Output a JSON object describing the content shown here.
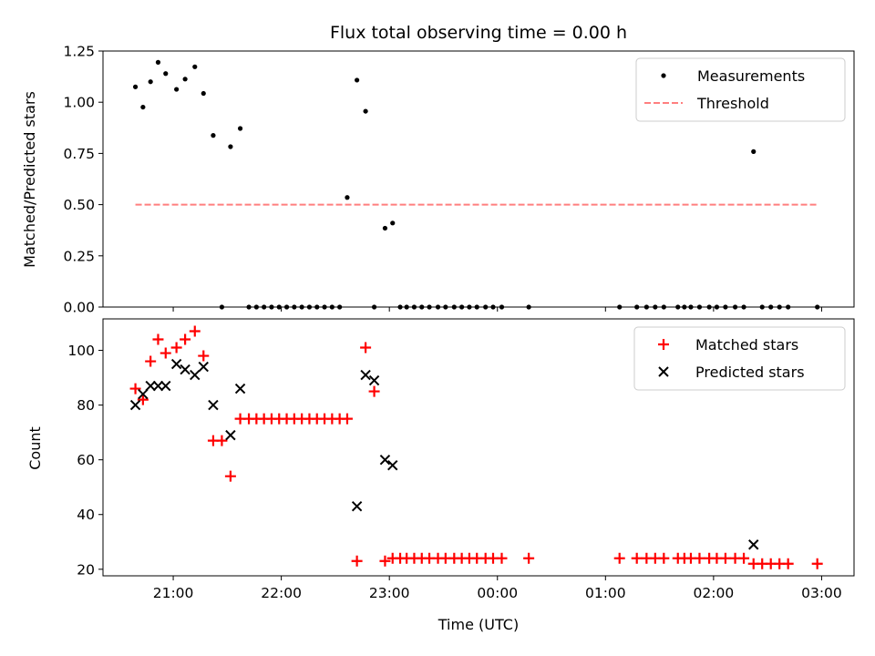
{
  "chart_data": [
    {
      "type": "scatter",
      "title": "Flux total observing time = 0.00 h",
      "ylabel": "Matched/Predicted stars",
      "xlabel": "",
      "ylim": [
        0,
        1.25
      ],
      "xlim": [
        20.35,
        27.3
      ],
      "yticks": [
        0.0,
        0.25,
        0.5,
        0.75,
        1.0,
        1.25
      ],
      "ytick_labels": [
        "0.00",
        "0.25",
        "0.50",
        "0.75",
        "1.00",
        "1.25"
      ],
      "series": [
        {
          "name": "Measurements",
          "color": "#000000",
          "marker": "dot",
          "x": [
            20.65,
            20.72,
            20.79,
            20.86,
            20.93,
            21.03,
            21.11,
            21.2,
            21.28,
            21.37,
            21.45,
            21.53,
            21.62,
            21.7,
            21.77,
            21.84,
            21.91,
            21.98,
            22.05,
            22.12,
            22.19,
            22.26,
            22.33,
            22.4,
            22.47,
            22.54,
            22.61,
            22.7,
            22.78,
            22.86,
            22.96,
            23.03,
            23.1,
            23.16,
            23.23,
            23.3,
            23.37,
            23.45,
            23.52,
            23.6,
            23.67,
            23.74,
            23.81,
            23.89,
            23.96,
            24.04,
            24.29,
            25.13,
            25.29,
            25.38,
            25.46,
            25.54,
            25.67,
            25.73,
            25.79,
            25.87,
            25.96,
            26.03,
            26.11,
            26.2,
            26.28,
            26.37,
            26.45,
            26.53,
            26.61,
            26.69,
            26.96
          ],
          "y": [
            1.075,
            0.976,
            1.1,
            1.195,
            1.14,
            1.063,
            1.113,
            1.173,
            1.043,
            0.838,
            0.0,
            0.783,
            0.872,
            0.0,
            0.0,
            0.0,
            0.0,
            0.0,
            0.0,
            0.0,
            0.0,
            0.0,
            0.0,
            0.0,
            0.0,
            0.0,
            0.535,
            1.108,
            0.956,
            0.0,
            0.385,
            0.41,
            0.0,
            0.0,
            0.0,
            0.0,
            0.0,
            0.0,
            0.0,
            0.0,
            0.0,
            0.0,
            0.0,
            0.0,
            0.0,
            0.0,
            0.0,
            0.0,
            0.0,
            0.0,
            0.0,
            0.0,
            0.0,
            0.0,
            0.0,
            0.0,
            0.0,
            0.0,
            0.0,
            0.0,
            0.0,
            0.759,
            0.0,
            0.0,
            0.0,
            0.0,
            0.0
          ]
        },
        {
          "name": "Threshold",
          "color": "#ff7f7f",
          "style": "dashed",
          "x": [
            20.65,
            26.96
          ],
          "y": [
            0.5,
            0.5
          ]
        }
      ],
      "legend": {
        "location": "upper right",
        "entries": [
          "Measurements",
          "Threshold"
        ]
      }
    },
    {
      "type": "scatter",
      "title": "",
      "xlabel": "Time (UTC)",
      "ylabel": "Count",
      "ylim": [
        17.6,
        111.5
      ],
      "xlim": [
        20.35,
        27.3
      ],
      "yticks": [
        20,
        40,
        60,
        80,
        100
      ],
      "ytick_labels": [
        "20",
        "40",
        "60",
        "80",
        "100"
      ],
      "xticks": [
        21,
        22,
        23,
        24,
        25,
        26,
        27
      ],
      "xtick_labels": [
        "21:00",
        "22:00",
        "23:00",
        "00:00",
        "01:00",
        "02:00",
        "03:00"
      ],
      "series": [
        {
          "name": "Matched stars",
          "color": "#ff0000",
          "marker": "plus",
          "x": [
            20.65,
            20.72,
            20.79,
            20.86,
            20.93,
            21.03,
            21.11,
            21.2,
            21.28,
            21.37,
            21.45,
            21.53,
            21.62,
            21.7,
            21.77,
            21.84,
            21.91,
            21.98,
            22.05,
            22.12,
            22.19,
            22.26,
            22.33,
            22.4,
            22.47,
            22.54,
            22.61,
            22.7,
            22.78,
            22.86,
            22.96,
            23.03,
            23.1,
            23.16,
            23.23,
            23.3,
            23.37,
            23.45,
            23.52,
            23.6,
            23.67,
            23.74,
            23.81,
            23.89,
            23.96,
            24.04,
            24.29,
            25.13,
            25.29,
            25.38,
            25.46,
            25.54,
            25.67,
            25.73,
            25.79,
            25.87,
            25.96,
            26.03,
            26.11,
            26.2,
            26.28,
            26.37,
            26.45,
            26.53,
            26.61,
            26.69,
            26.96
          ],
          "y": [
            86,
            82,
            96,
            104,
            99,
            101,
            104,
            107,
            98,
            67,
            67,
            54,
            75,
            75,
            75,
            75,
            75,
            75,
            75,
            75,
            75,
            75,
            75,
            75,
            75,
            75,
            75,
            23,
            101,
            85,
            23,
            24,
            24,
            24,
            24,
            24,
            24,
            24,
            24,
            24,
            24,
            24,
            24,
            24,
            24,
            24,
            24,
            24,
            24,
            24,
            24,
            24,
            24,
            24,
            24,
            24,
            24,
            24,
            24,
            24,
            24,
            22,
            22,
            22,
            22,
            22,
            22
          ]
        },
        {
          "name": "Predicted stars",
          "color": "#000000",
          "marker": "x",
          "x": [
            20.65,
            20.72,
            20.79,
            20.86,
            20.93,
            21.03,
            21.11,
            21.2,
            21.28,
            21.37,
            21.53,
            21.62,
            22.7,
            22.78,
            22.86,
            22.96,
            23.03,
            26.37
          ],
          "y": [
            80,
            84,
            87,
            87,
            87,
            95,
            93,
            91,
            94,
            80,
            69,
            86,
            43,
            91,
            89,
            60,
            58,
            29
          ]
        }
      ],
      "legend": {
        "location": "upper right",
        "entries": [
          "Matched stars",
          "Predicted stars"
        ]
      }
    }
  ]
}
